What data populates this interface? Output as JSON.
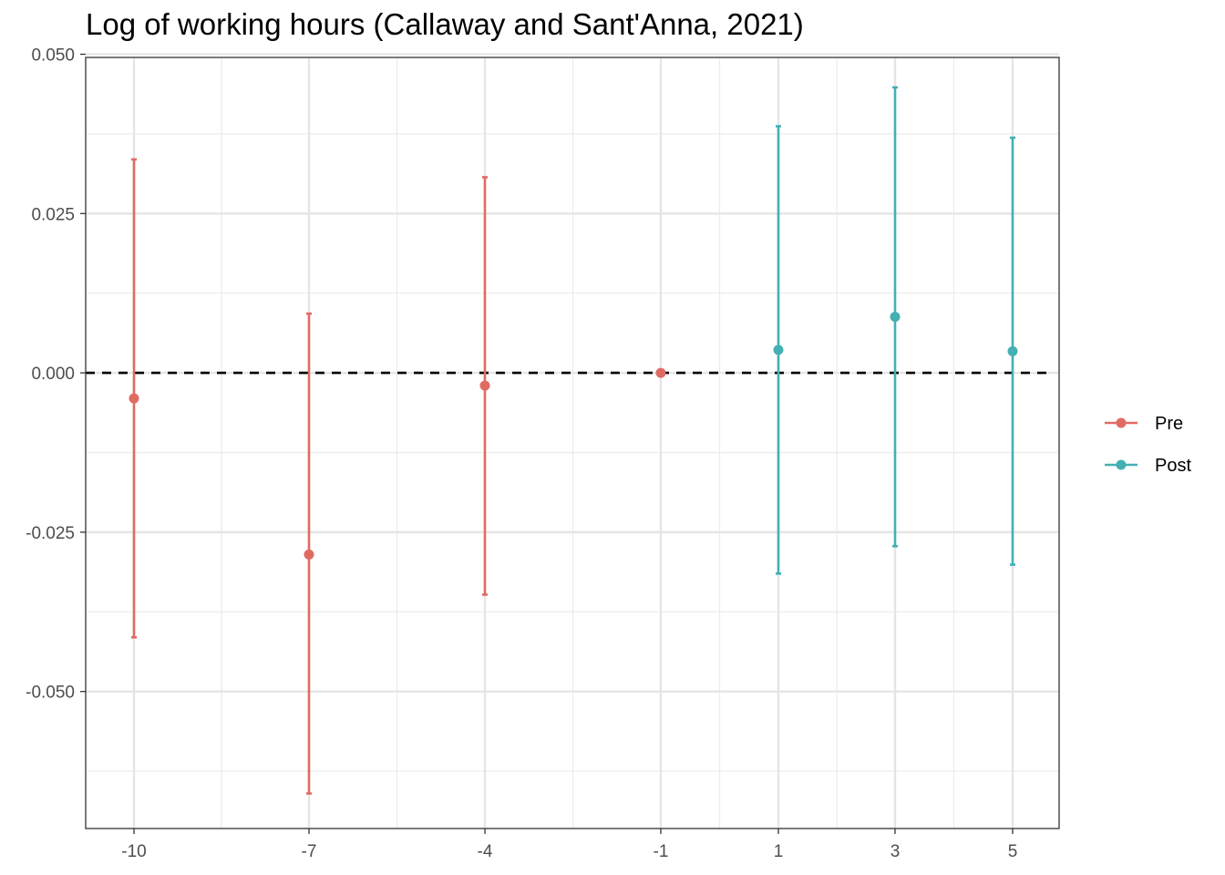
{
  "chart_data": {
    "type": "scatter",
    "title": "Log of working hours (Callaway and Sant'Anna, 2021)",
    "xlabel": "",
    "ylabel": "",
    "x_ticks": [
      "-10",
      "-7",
      "-4",
      "-1",
      "1",
      "3",
      "5"
    ],
    "y_ticks": [
      "0.050",
      "0.025",
      "0.000",
      "-0.025",
      "-0.050"
    ],
    "ylim": [
      -0.0715,
      0.0495
    ],
    "grid": true,
    "reference_line": {
      "y": 0,
      "style": "dashed",
      "color": "#000000"
    },
    "legend": {
      "position": "right",
      "entries": [
        "Pre",
        "Post"
      ]
    },
    "series": [
      {
        "name": "Pre",
        "color": "#E06B63",
        "points": [
          {
            "x": "-10",
            "y": -0.004,
            "lower": -0.0415,
            "upper": 0.0335
          },
          {
            "x": "-7",
            "y": -0.0285,
            "lower": -0.066,
            "upper": 0.0093
          },
          {
            "x": "-4",
            "y": -0.002,
            "lower": -0.0348,
            "upper": 0.0307
          },
          {
            "x": "-1",
            "y": 0.0
          }
        ]
      },
      {
        "name": "Post",
        "color": "#45B0B3",
        "points": [
          {
            "x": "1",
            "y": 0.0036,
            "lower": -0.0315,
            "upper": 0.0387
          },
          {
            "x": "3",
            "y": 0.0088,
            "lower": -0.0272,
            "upper": 0.0448
          },
          {
            "x": "5",
            "y": 0.0034,
            "lower": -0.0301,
            "upper": 0.0369
          }
        ]
      }
    ]
  }
}
